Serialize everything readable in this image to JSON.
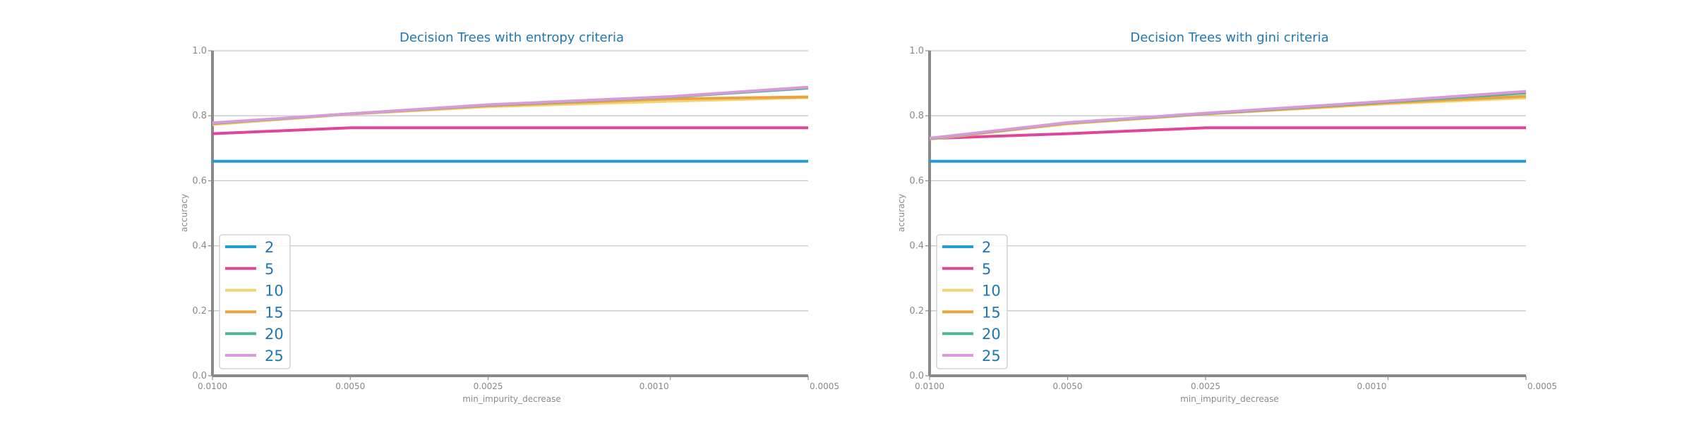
{
  "chart_data": [
    {
      "type": "line",
      "title": "Decision Trees with entropy criteria",
      "xlabel": "min_impurity_decrease",
      "ylabel": "accuracy",
      "x": [
        0.01,
        0.005,
        0.0025,
        0.001,
        0.0005
      ],
      "x_tick_labels": [
        "0.0100",
        "0.0050",
        "0.0025",
        "0.0010",
        "0.0005"
      ],
      "ylim": [
        0,
        1.0
      ],
      "y_ticks": [
        "0.0",
        "0.2",
        "0.4",
        "0.6",
        "0.8",
        "1.0"
      ],
      "grid": "horizontal",
      "legend_position": "lower-left",
      "series": [
        {
          "name": "2",
          "color": "#1f9fd5",
          "values": [
            0.66,
            0.66,
            0.66,
            0.66,
            0.66
          ]
        },
        {
          "name": "5",
          "color": "#e0449b",
          "values": [
            0.745,
            0.763,
            0.763,
            0.763,
            0.763
          ]
        },
        {
          "name": "10",
          "color": "#f2d472",
          "values": [
            0.773,
            0.805,
            0.828,
            0.845,
            0.856
          ]
        },
        {
          "name": "15",
          "color": "#e9a441",
          "values": [
            0.776,
            0.806,
            0.831,
            0.852,
            0.858
          ]
        },
        {
          "name": "20",
          "color": "#4fb399",
          "values": [
            0.777,
            0.806,
            0.833,
            0.858,
            0.885
          ]
        },
        {
          "name": "25",
          "color": "#d99ad7",
          "values": [
            0.778,
            0.806,
            0.834,
            0.859,
            0.888
          ]
        }
      ]
    },
    {
      "type": "line",
      "title": "Decision Trees with gini criteria",
      "xlabel": "min_impurity_decrease",
      "ylabel": "accuracy",
      "x": [
        0.01,
        0.005,
        0.0025,
        0.001,
        0.0005
      ],
      "x_tick_labels": [
        "0.0100",
        "0.0050",
        "0.0025",
        "0.0010",
        "0.0005"
      ],
      "ylim": [
        0,
        1.0
      ],
      "y_ticks": [
        "0.0",
        "0.2",
        "0.4",
        "0.6",
        "0.8",
        "1.0"
      ],
      "grid": "horizontal",
      "legend_position": "lower-left",
      "series": [
        {
          "name": "2",
          "color": "#1f9fd5",
          "values": [
            0.66,
            0.66,
            0.66,
            0.66,
            0.66
          ]
        },
        {
          "name": "5",
          "color": "#e0449b",
          "values": [
            0.73,
            0.745,
            0.763,
            0.763,
            0.763
          ]
        },
        {
          "name": "10",
          "color": "#f2d472",
          "values": [
            0.728,
            0.775,
            0.805,
            0.837,
            0.855
          ]
        },
        {
          "name": "15",
          "color": "#e9a441",
          "values": [
            0.729,
            0.777,
            0.806,
            0.84,
            0.86
          ]
        },
        {
          "name": "20",
          "color": "#4fb399",
          "values": [
            0.73,
            0.778,
            0.807,
            0.843,
            0.87
          ]
        },
        {
          "name": "25",
          "color": "#d99ad7",
          "values": [
            0.731,
            0.779,
            0.808,
            0.845,
            0.875
          ]
        }
      ]
    }
  ]
}
